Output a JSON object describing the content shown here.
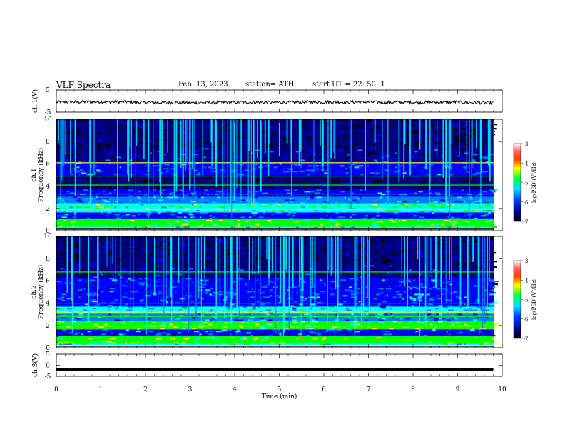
{
  "header": {
    "title": "VLF  Spectra",
    "date": "Feb. 13, 2023",
    "station": "station= ATH",
    "start_ut": "start  UT  =   22: 50: 1"
  },
  "chart_data": [
    {
      "type": "line",
      "panel": "ch1-waveform",
      "ylabel": "ch.1(V)",
      "ylim": [
        -5,
        5
      ],
      "yticks": [
        "5",
        "-5"
      ],
      "x": [
        0,
        1,
        2,
        3,
        4,
        5,
        6,
        7,
        8,
        9,
        9.8
      ],
      "values": [
        -0.5,
        -0.3,
        -0.6,
        -0.8,
        -0.5,
        -0.6,
        -0.4,
        -0.5,
        -0.6,
        -0.5,
        -0.9
      ]
    },
    {
      "type": "heatmap",
      "panel": "ch1-spectrogram",
      "ylabel": "ch.1\nFrequency  (kHz)",
      "ylim": [
        0,
        10
      ],
      "yticks": [
        "0",
        "2",
        "4",
        "6",
        "8",
        "10"
      ],
      "xlim": [
        0,
        10
      ],
      "colorbar": {
        "label": "log(PSD)(V²/Hz)",
        "ticks": [
          "-3",
          "-4",
          "-5",
          "-6",
          "-7"
        ],
        "range": [
          -7,
          -3
        ]
      }
    },
    {
      "type": "heatmap",
      "panel": "ch2-spectrogram",
      "ylabel": "ch.2\nFrequency  (kHz)",
      "ylim": [
        0,
        10
      ],
      "yticks": [
        "0",
        "2",
        "4",
        "6",
        "8",
        "10"
      ],
      "xlim": [
        0,
        10
      ],
      "colorbar": {
        "label": "log(PSD)(V²/Hz)",
        "ticks": [
          "-3",
          "-4",
          "-5",
          "-6",
          "-7"
        ],
        "range": [
          -7,
          -3
        ]
      }
    },
    {
      "type": "line",
      "panel": "ch3-waveform",
      "ylabel": "ch.3(V)",
      "ylim": [
        -5,
        5
      ],
      "yticks": [
        "5",
        "0",
        "-5"
      ],
      "x": [
        0,
        9.8
      ],
      "values": [
        -1.8,
        -1.8
      ]
    }
  ],
  "xaxis": {
    "label": "Time  (min)",
    "ticks": [
      "0",
      "1",
      "2",
      "3",
      "4",
      "5",
      "6",
      "7",
      "8",
      "9",
      "10"
    ],
    "range": [
      0,
      10
    ]
  },
  "colors": {
    "colormap": [
      "#000000",
      "#000080",
      "#0000ff",
      "#0080ff",
      "#00ffff",
      "#00ff00",
      "#ffff00",
      "#ff8000",
      "#ff0000",
      "#ffffff"
    ]
  }
}
